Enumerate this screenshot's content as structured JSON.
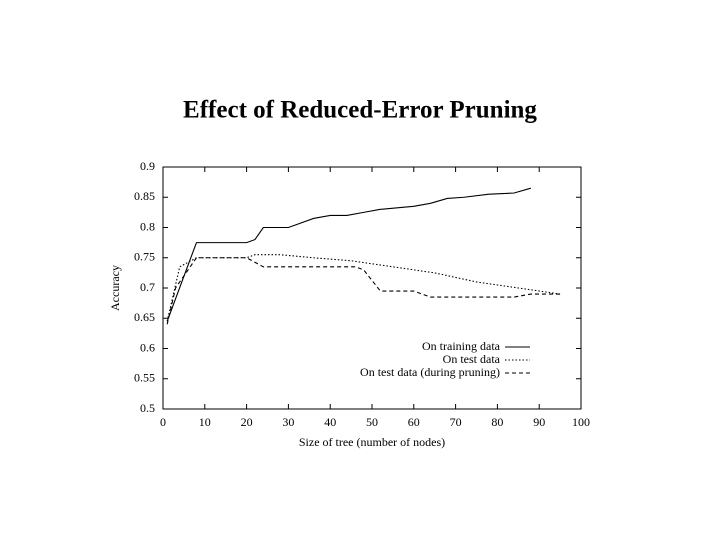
{
  "chart_data": {
    "type": "line",
    "title": "Effect of Reduced-Error Pruning",
    "x_label": "Size of tree (number of nodes)",
    "y_label": "Accuracy",
    "xlim": [
      0,
      100
    ],
    "ylim": [
      0.5,
      0.9
    ],
    "xticks": [
      0,
      10,
      20,
      30,
      40,
      50,
      60,
      70,
      80,
      90,
      100
    ],
    "yticks": [
      0.5,
      0.55,
      0.6,
      0.65,
      0.7,
      0.75,
      0.8,
      0.85,
      0.9
    ],
    "legend": "lower right",
    "series": [
      {
        "name": "On training data",
        "color": "#000000",
        "style": "solid",
        "x": [
          1,
          8,
          20,
          22,
          24,
          30,
          32,
          36,
          40,
          44,
          48,
          52,
          60,
          64,
          68,
          72,
          78,
          84,
          88
        ],
        "values": [
          0.645,
          0.775,
          0.775,
          0.78,
          0.8,
          0.8,
          0.805,
          0.815,
          0.82,
          0.82,
          0.825,
          0.83,
          0.835,
          0.84,
          0.848,
          0.85,
          0.855,
          0.857,
          0.865
        ]
      },
      {
        "name": "On test data",
        "color": "#000000",
        "style": "dotted",
        "x": [
          1,
          4,
          8,
          20,
          22,
          28,
          36,
          45,
          55,
          65,
          75,
          85,
          95
        ],
        "values": [
          0.645,
          0.735,
          0.75,
          0.75,
          0.755,
          0.755,
          0.75,
          0.745,
          0.735,
          0.725,
          0.71,
          0.7,
          0.69
        ]
      },
      {
        "name": "On test data (during pruning)",
        "color": "#000000",
        "style": "dashed",
        "x": [
          1,
          3,
          8,
          20,
          24,
          46,
          48,
          52,
          60,
          64,
          84,
          88,
          95
        ],
        "values": [
          0.64,
          0.7,
          0.75,
          0.75,
          0.735,
          0.735,
          0.73,
          0.695,
          0.695,
          0.685,
          0.685,
          0.69,
          0.69
        ]
      }
    ]
  }
}
